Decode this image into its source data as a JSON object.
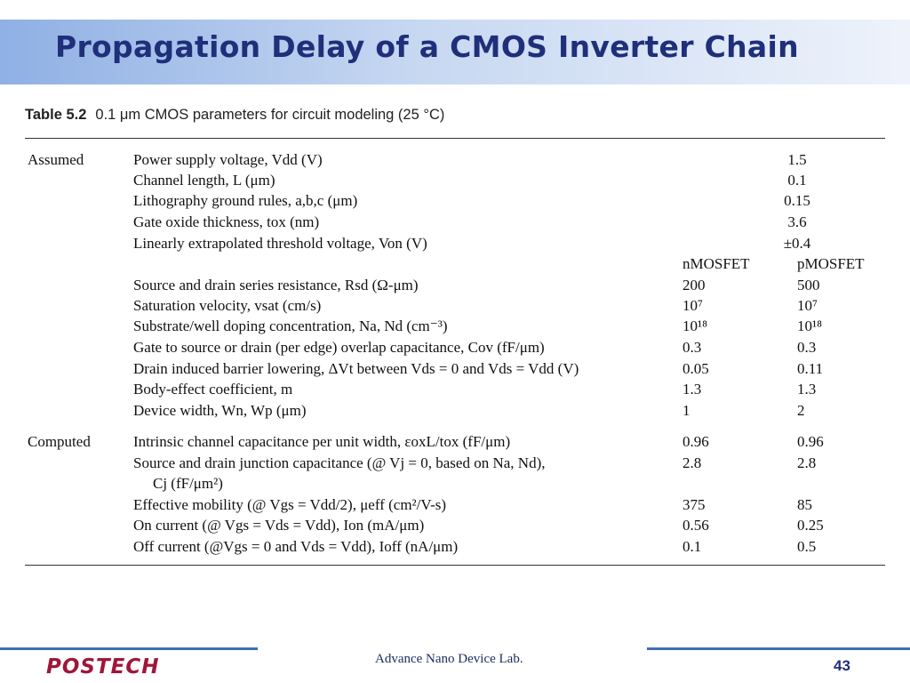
{
  "slide": {
    "title": "Propagation Delay of a CMOS Inverter Chain",
    "page_number": "43"
  },
  "table": {
    "number": "Table 5.2",
    "caption": "0.1 μm CMOS parameters for circuit modeling (25 °C)",
    "header": {
      "n": "nMOSFET",
      "p": "pMOSFET"
    },
    "assumed": {
      "group": "Assumed",
      "single_rows": [
        {
          "param": "Power supply voltage, Vdd (V)",
          "value": "1.5"
        },
        {
          "param": "Channel length, L (μm)",
          "value": "0.1"
        },
        {
          "param": "Lithography ground rules, a,b,c (μm)",
          "value": "0.15"
        },
        {
          "param": "Gate oxide thickness, tox (nm)",
          "value": "3.6"
        },
        {
          "param": "Linearly extrapolated threshold voltage, Von (V)",
          "value": "±0.4"
        }
      ],
      "dual_rows": [
        {
          "param": "Source and drain series resistance, Rsd (Ω-μm)",
          "n": "200",
          "p": "500"
        },
        {
          "param": "Saturation velocity, vsat (cm/s)",
          "n": "10⁷",
          "p": "10⁷"
        },
        {
          "param": "Substrate/well doping concentration, Na, Nd (cm⁻³)",
          "n": "10¹⁸",
          "p": "10¹⁸"
        },
        {
          "param": "Gate to source or drain (per edge) overlap capacitance, Cov (fF/μm)",
          "n": "0.3",
          "p": "0.3"
        },
        {
          "param": "Drain induced barrier lowering, ΔVt between Vds = 0 and Vds = Vdd (V)",
          "n": "0.05",
          "p": "0.11"
        },
        {
          "param": "Body-effect coefficient, m",
          "n": "1.3",
          "p": "1.3"
        },
        {
          "param": "Device width, Wn, Wp (μm)",
          "n": "1",
          "p": "2"
        }
      ]
    },
    "computed": {
      "group": "Computed",
      "rows": [
        {
          "param": "Intrinsic channel capacitance per unit width, εoxL/tox (fF/μm)",
          "n": "0.96",
          "p": "0.96"
        },
        {
          "param": "Source and drain junction capacitance (@ Vj = 0, based on Na, Nd),",
          "n": "2.8",
          "p": "2.8"
        },
        {
          "param": "Cj (fF/μm²)",
          "n": "",
          "p": ""
        },
        {
          "param": "Effective mobility (@ Vgs = Vdd/2), μeff (cm²/V-s)",
          "n": "375",
          "p": "85"
        },
        {
          "param": "On current (@ Vgs = Vds = Vdd), Ion (mA/μm)",
          "n": "0.56",
          "p": "0.25"
        },
        {
          "param": "Off current (@Vgs = 0 and Vds = Vdd), Ioff (nA/μm)",
          "n": "0.1",
          "p": "0.5"
        }
      ]
    }
  },
  "footer": {
    "logo": "POSTECH",
    "lab": "Advance Nano Device Lab."
  }
}
